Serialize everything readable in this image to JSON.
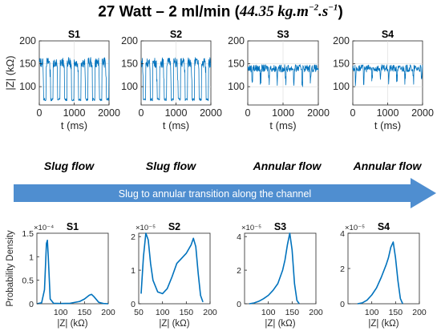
{
  "title": {
    "prefix": "27 Watt – 2 ml/min (",
    "value": "44.35 kg.m",
    "exp1": "−2",
    "mid": ".s",
    "exp2": "−1",
    "suffix": ")"
  },
  "flow_labels": [
    "Slug flow",
    "Slug flow",
    "Annular flow",
    "Annular flow"
  ],
  "arrow_text": "Slug to annular transition along the channel",
  "colors": {
    "line": "#0072BD",
    "arrow": "#4F8ED0",
    "arrow_text": "#ffffff",
    "axis": "#262626",
    "grid": "#d9d9d9"
  },
  "chart_data": [
    {
      "type": "line",
      "title": "S1",
      "xlabel": "t (ms)",
      "ylabel": "|Z| (kΩ)",
      "xlim": [
        0,
        2000
      ],
      "ylim": [
        60,
        200
      ],
      "xticks": [
        0,
        1000,
        2000
      ],
      "yticks": [
        100,
        150,
        200
      ],
      "pattern": "slug",
      "x": [
        0,
        200,
        400,
        600,
        800,
        1000,
        1200,
        1400,
        1600,
        1800,
        2000
      ],
      "y": [
        160,
        72,
        155,
        72,
        150,
        155,
        72,
        158,
        72,
        152,
        72
      ]
    },
    {
      "type": "line",
      "title": "S2",
      "xlabel": "t (ms)",
      "ylabel": "",
      "xlim": [
        0,
        2000
      ],
      "ylim": [
        60,
        200
      ],
      "xticks": [
        0,
        1000,
        2000
      ],
      "yticks": [
        100,
        150,
        200
      ],
      "pattern": "slug",
      "x": [
        0,
        200,
        400,
        600,
        800,
        1000,
        1200,
        1400,
        1600,
        1800,
        2000
      ],
      "y": [
        165,
        72,
        160,
        72,
        162,
        155,
        72,
        165,
        72,
        160,
        72
      ]
    },
    {
      "type": "line",
      "title": "S3",
      "xlabel": "t (ms)",
      "ylabel": "",
      "xlim": [
        0,
        2000
      ],
      "ylim": [
        60,
        200
      ],
      "xticks": [
        0,
        1000,
        2000
      ],
      "yticks": [
        100,
        150,
        200
      ],
      "pattern": "annular",
      "x": [
        0,
        200,
        400,
        600,
        800,
        1000,
        1200,
        1400,
        1600,
        1800,
        2000
      ],
      "y": [
        140,
        95,
        145,
        100,
        142,
        138,
        95,
        145,
        100,
        140,
        142
      ]
    },
    {
      "type": "line",
      "title": "S4",
      "xlabel": "t (ms)",
      "ylabel": "",
      "xlim": [
        0,
        2000
      ],
      "ylim": [
        60,
        200
      ],
      "xticks": [
        0,
        1000,
        2000
      ],
      "yticks": [
        100,
        150,
        200
      ],
      "pattern": "annular",
      "x": [
        0,
        200,
        400,
        600,
        800,
        1000,
        1200,
        1400,
        1600,
        1800,
        2000
      ],
      "y": [
        150,
        115,
        145,
        110,
        140,
        135,
        105,
        140,
        110,
        145,
        140
      ]
    },
    {
      "type": "line",
      "title": "S1",
      "xlabel": "|Z| (kΩ)",
      "ylabel": "Probability Density",
      "multiplier": "×10⁻⁴",
      "xlim": [
        50,
        200
      ],
      "ylim": [
        0,
        1.5
      ],
      "xticks": [
        100,
        150,
        200
      ],
      "yticks": [
        0,
        0.5,
        1,
        1.5
      ],
      "x": [
        50,
        60,
        66,
        70,
        72,
        74,
        78,
        85,
        100,
        120,
        140,
        150,
        160,
        165,
        170,
        180,
        190,
        200
      ],
      "y": [
        0,
        0.02,
        0.3,
        1.28,
        1.35,
        1.0,
        0.1,
        0.01,
        0.005,
        0.01,
        0.05,
        0.1,
        0.18,
        0.2,
        0.15,
        0.03,
        0.005,
        0
      ]
    },
    {
      "type": "line",
      "title": "S2",
      "xlabel": "|Z| (kΩ)",
      "ylabel": "",
      "multiplier": "×10⁻⁵",
      "xlim": [
        50,
        200
      ],
      "ylim": [
        0,
        2.1
      ],
      "xticks": [
        50,
        100,
        150,
        200
      ],
      "yticks": [
        0,
        1,
        2
      ],
      "x": [
        55,
        60,
        65,
        70,
        75,
        80,
        90,
        100,
        110,
        120,
        130,
        140,
        150,
        160,
        165,
        170,
        175,
        180,
        185
      ],
      "y": [
        0.3,
        1.4,
        2.1,
        1.9,
        1.2,
        0.7,
        0.35,
        0.3,
        0.45,
        0.8,
        1.2,
        1.35,
        1.5,
        1.75,
        1.95,
        1.7,
        0.9,
        0.25,
        0.05
      ]
    },
    {
      "type": "line",
      "title": "S3",
      "xlabel": "|Z| (kΩ)",
      "ylabel": "",
      "multiplier": "×10⁻⁵",
      "xlim": [
        50,
        200
      ],
      "ylim": [
        0,
        4.2
      ],
      "xticks": [
        100,
        150,
        200
      ],
      "yticks": [
        0,
        2,
        4
      ],
      "x": [
        60,
        70,
        80,
        90,
        100,
        110,
        120,
        130,
        135,
        140,
        145,
        150,
        155,
        160,
        165
      ],
      "y": [
        0,
        0.05,
        0.15,
        0.3,
        0.5,
        0.8,
        1.2,
        2.0,
        2.6,
        3.5,
        4.2,
        3.2,
        1.2,
        0.2,
        0
      ]
    },
    {
      "type": "line",
      "title": "S4",
      "xlabel": "|Z| (kΩ)",
      "ylabel": "",
      "multiplier": "×10⁻⁵",
      "xlim": [
        50,
        200
      ],
      "ylim": [
        0,
        4
      ],
      "xticks": [
        100,
        150,
        200
      ],
      "yticks": [
        0,
        2,
        4
      ],
      "x": [
        70,
        80,
        90,
        100,
        110,
        120,
        130,
        135,
        140,
        145,
        150,
        155,
        160,
        165
      ],
      "y": [
        0,
        0.05,
        0.2,
        0.5,
        0.9,
        1.5,
        2.2,
        2.6,
        3.2,
        3.5,
        2.6,
        1.3,
        0.3,
        0
      ]
    }
  ]
}
